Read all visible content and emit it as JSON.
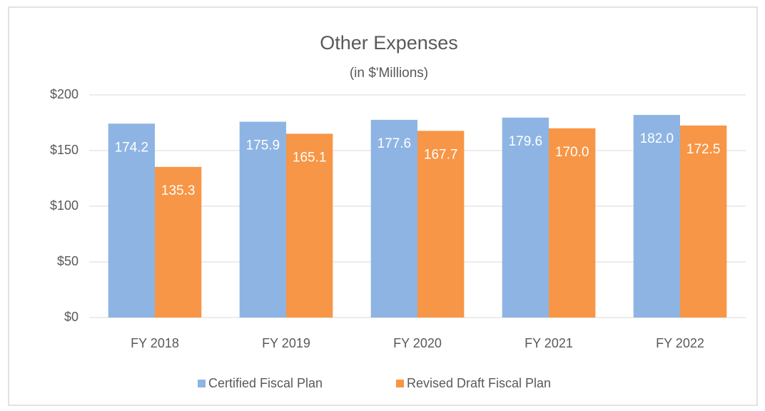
{
  "chart_data": {
    "type": "bar",
    "title": "Other Expenses",
    "subtitle": "(in $'Millions)",
    "categories": [
      "FY 2018",
      "FY 2019",
      "FY 2020",
      "FY 2021",
      "FY 2022"
    ],
    "series": [
      {
        "name": "Certified Fiscal Plan",
        "color": "#8eb4e3",
        "values": [
          174.2,
          175.9,
          177.6,
          179.6,
          182.0
        ],
        "value_labels": [
          "174.2",
          "175.9",
          "177.6",
          "179.6",
          "182.0"
        ]
      },
      {
        "name": "Revised Draft Fiscal Plan",
        "color": "#f79646",
        "values": [
          135.3,
          165.1,
          167.7,
          170.0,
          172.5
        ],
        "value_labels": [
          "135.3",
          "165.1",
          "167.7",
          "170.0",
          "172.5"
        ]
      }
    ],
    "ylim": [
      0,
      200
    ],
    "yticks": [
      {
        "value": 0,
        "label": "$0"
      },
      {
        "value": 50,
        "label": "$50"
      },
      {
        "value": 100,
        "label": "$100"
      },
      {
        "value": 150,
        "label": "$150"
      },
      {
        "value": 200,
        "label": "$200"
      }
    ],
    "grid": true,
    "legend": "bottom"
  }
}
